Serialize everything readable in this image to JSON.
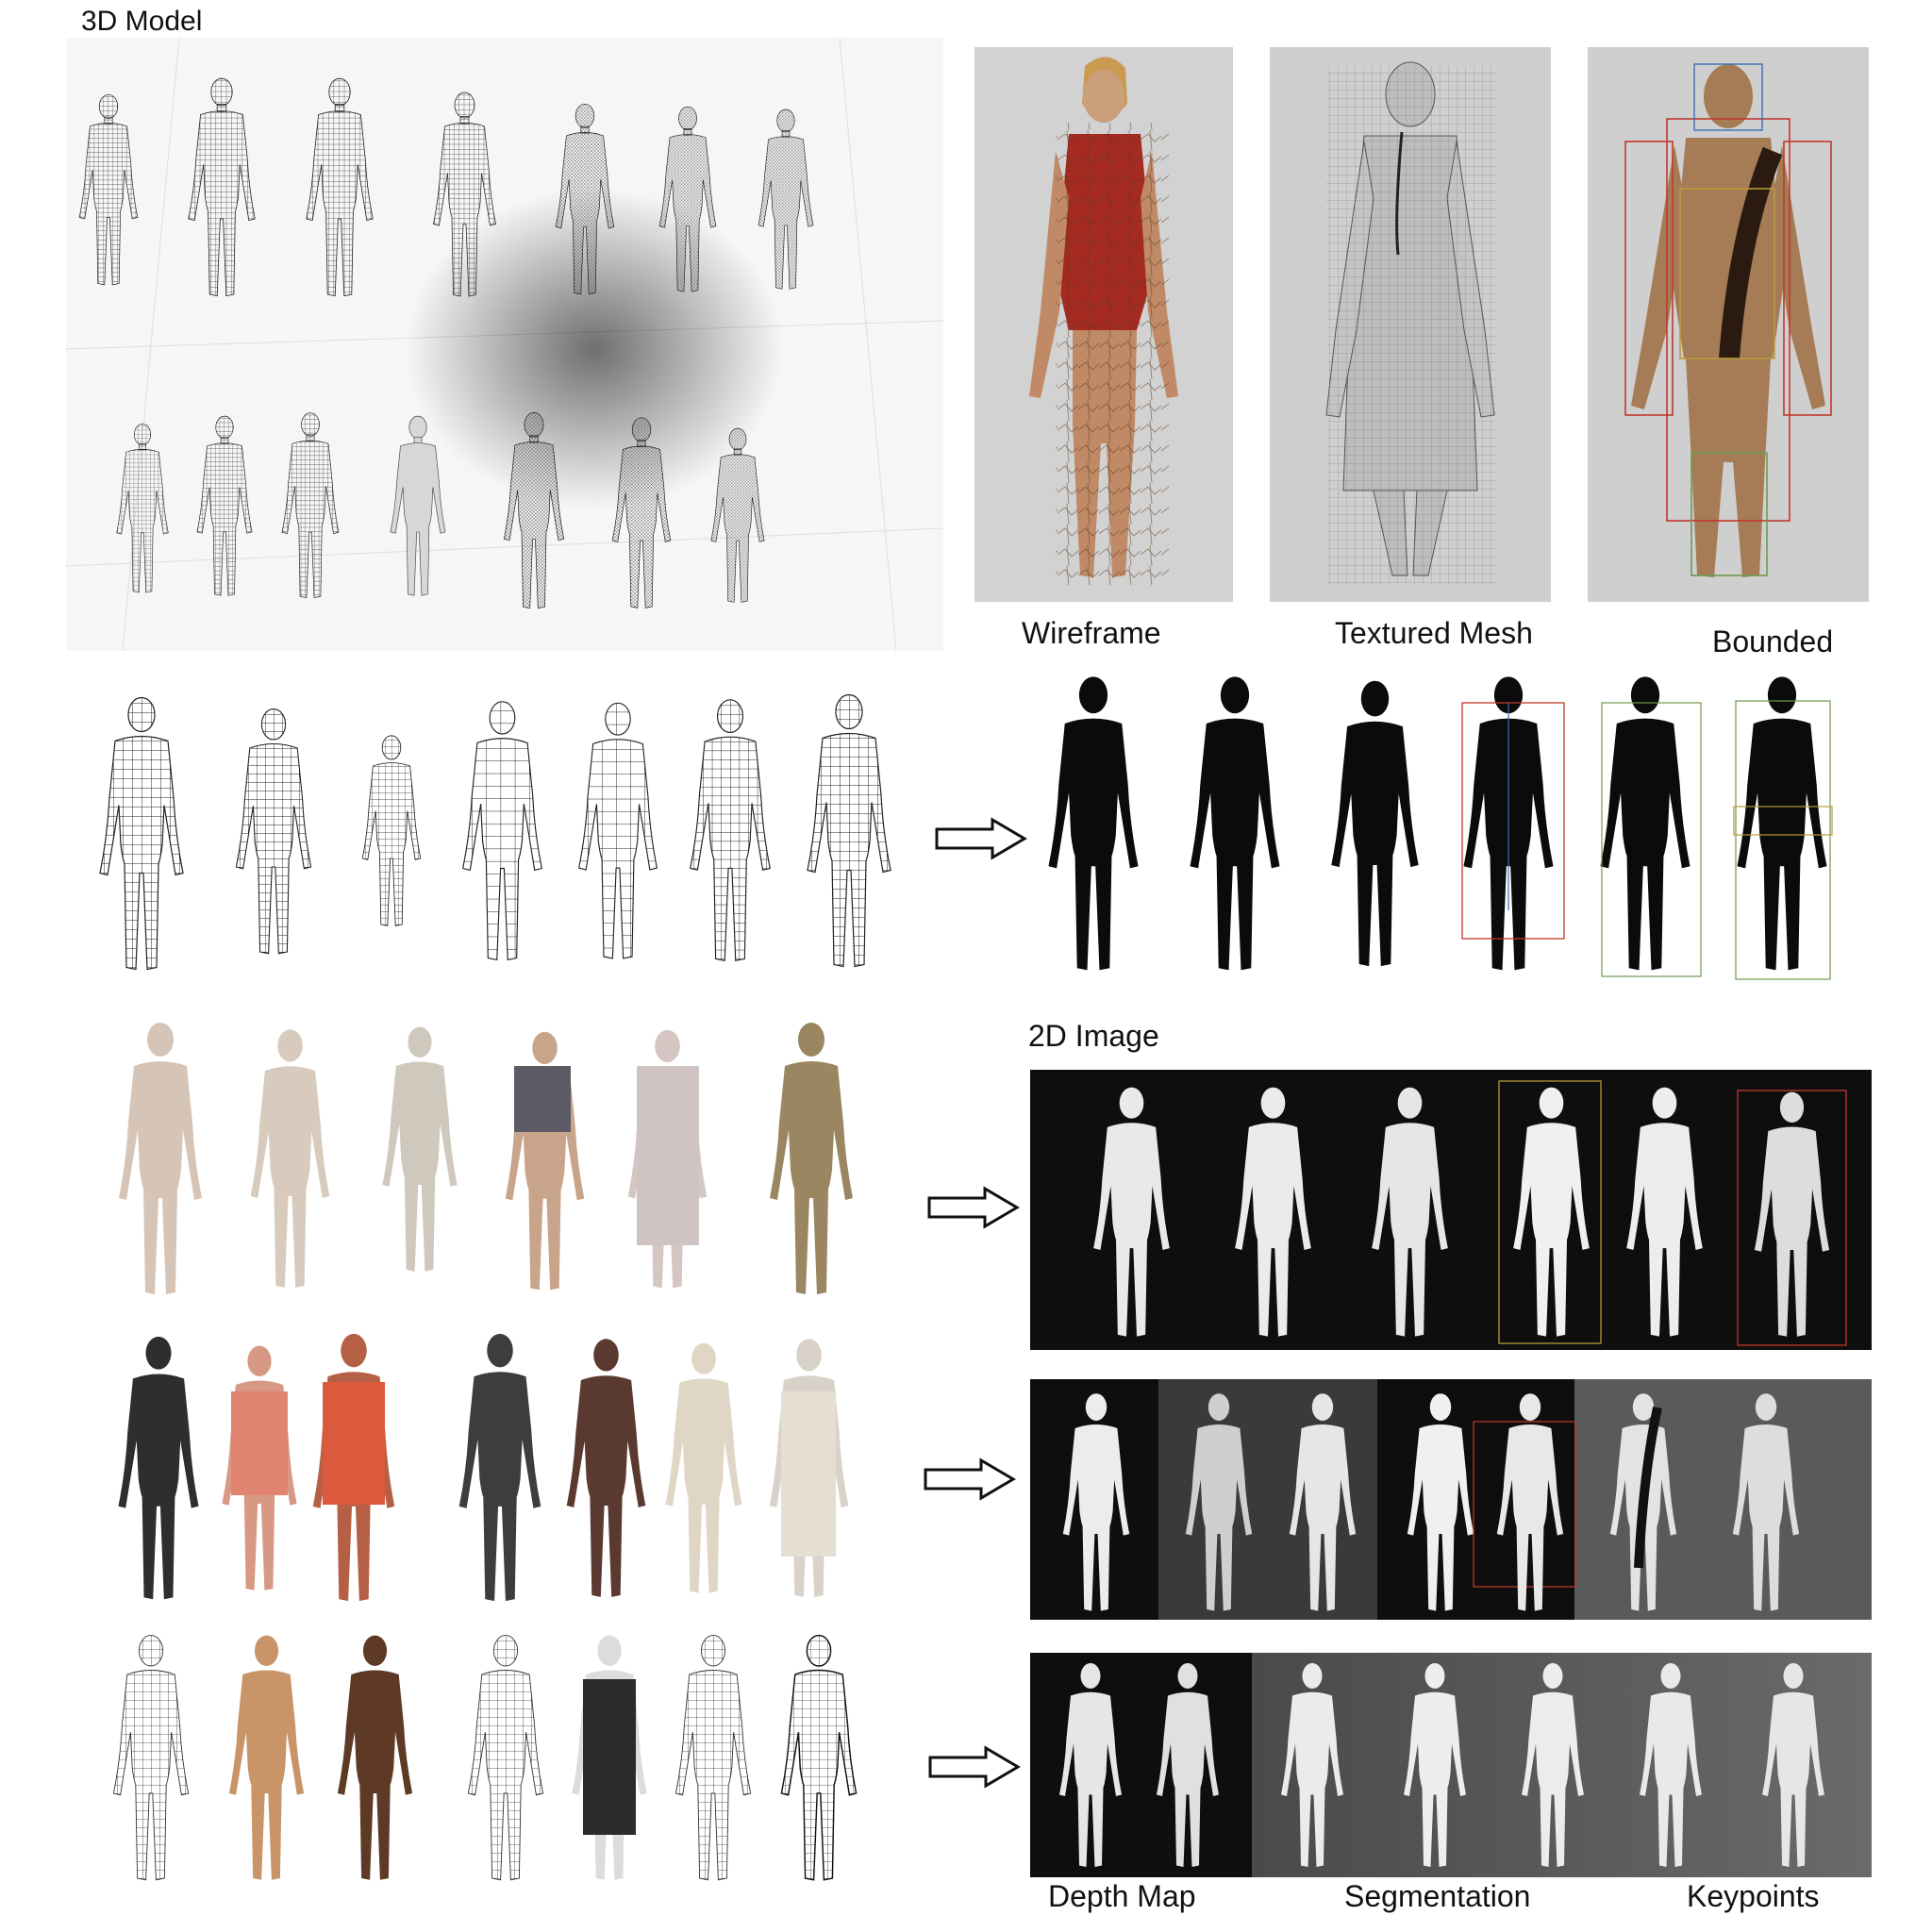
{
  "labels": {
    "top_left": "3D Model",
    "wireframe": "Wireframe",
    "textured_mesh": "Textured Mesh",
    "bounded": "Bounded",
    "image_2d": "2D Image",
    "depth_map": "Depth Map",
    "segmentation": "Segmentation",
    "keypoints": "Keypoints"
  },
  "colors": {
    "background": "#ffffff",
    "wire": "#2b2b2b",
    "silhouette": "#0b0b0b",
    "dark_panel": "#0e0e0e",
    "mid_panel": "#5a5a5a",
    "skin_light": "#d9c8b8",
    "skin_mid": "#b48660",
    "skin_dark": "#5e3a26",
    "shirt_red": "#a32a24",
    "box_red": "#c0392b",
    "box_green": "#6f9a4f",
    "box_yellow": "#b99a3a"
  },
  "icons": {
    "arrow": "right-arrow-icon",
    "figure": "human-figure-icon"
  }
}
